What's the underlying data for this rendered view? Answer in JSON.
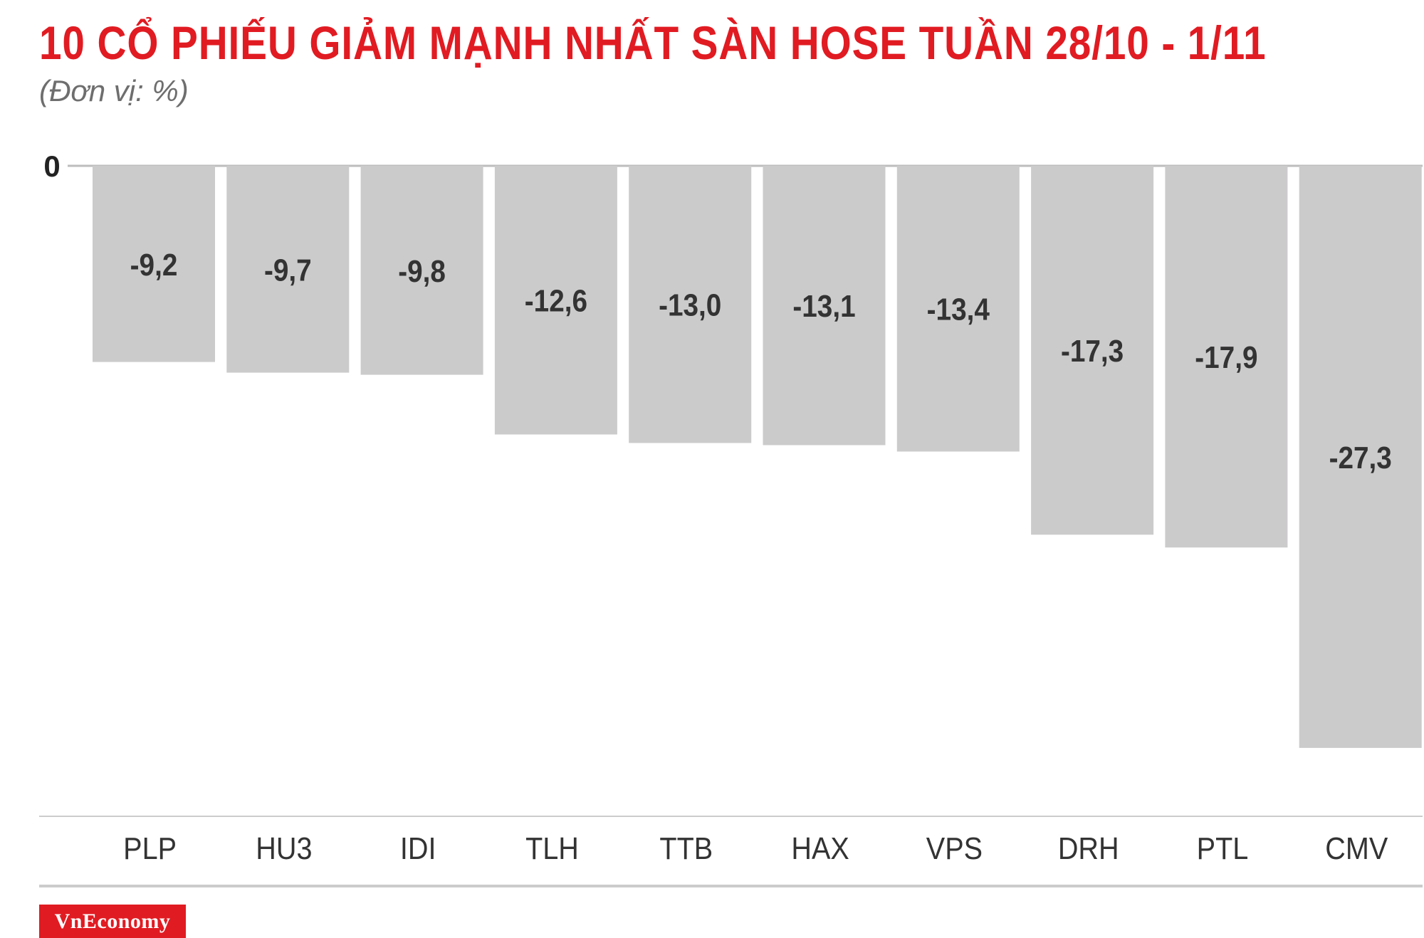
{
  "header": {
    "title": "10 CỔ PHIẾU GIẢM MẠNH NHẤT SÀN HOSE TUẦN 28/10 - 1/11",
    "subtitle": "(Đơn vị: %)"
  },
  "footer": {
    "logo_text": "VnEconomy"
  },
  "colors": {
    "title": "#e11b22",
    "bar": "#cccbcc",
    "value_label": "#333333",
    "axis_line": "#cccccc",
    "logo_bg": "#e11b22"
  },
  "chart_data": {
    "type": "bar",
    "title": "10 CỔ PHIẾU GIẢM MẠNH NHẤT SÀN HOSE TUẦN 28/10 - 1/11",
    "subtitle": "(Đơn vị: %)",
    "categories": [
      "PLP",
      "HU3",
      "IDI",
      "TLH",
      "TTB",
      "HAX",
      "VPS",
      "DRH",
      "PTL",
      "CMV"
    ],
    "values": [
      -9.2,
      -9.7,
      -9.8,
      -12.6,
      -13.0,
      -13.1,
      -13.4,
      -17.3,
      -17.9,
      -27.3
    ],
    "value_labels": [
      "-9,2",
      "-9,7",
      "-9,8",
      "-12,6",
      "-13,0",
      "-13,1",
      "-13,4",
      "-17,3",
      "-17,9",
      "-27,3"
    ],
    "y_tick_labels": [
      "0"
    ],
    "ylim": [
      -28,
      0
    ],
    "xlabel": "",
    "ylabel": "",
    "grid": false,
    "legend": "none"
  }
}
